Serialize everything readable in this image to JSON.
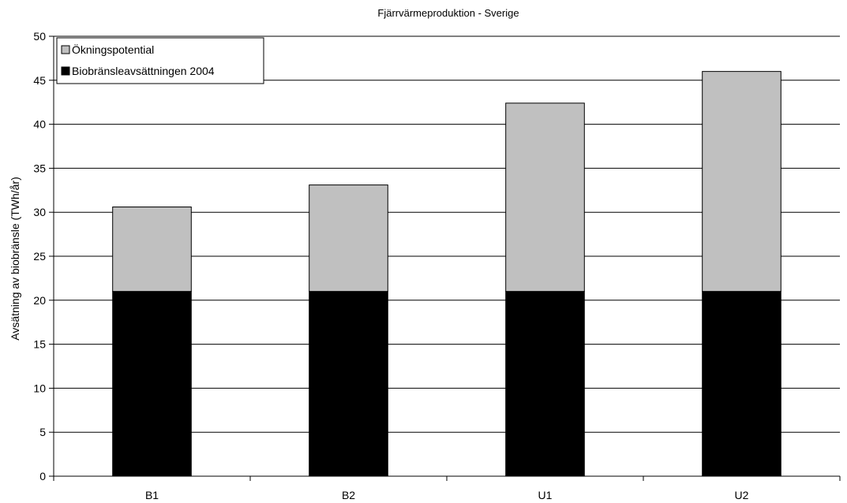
{
  "chart_data": {
    "type": "bar",
    "stacked": true,
    "title": "Fjärrvärmeproduktion - Sverige",
    "xlabel": "",
    "ylabel": "Avsätning av biobränsle (TWh/år)",
    "categories": [
      "B1",
      "B2",
      "U1",
      "U2"
    ],
    "series": [
      {
        "name": "Biobränsleavsättningen 2004",
        "values": [
          21.0,
          21.0,
          21.0,
          21.0
        ],
        "color": "#000000"
      },
      {
        "name": "Ökningspotential",
        "values": [
          9.6,
          12.1,
          21.4,
          25.0
        ],
        "color": "#c0c0c0"
      }
    ],
    "ylim": [
      0,
      50
    ],
    "yticks": [
      0,
      5,
      10,
      15,
      20,
      25,
      30,
      35,
      40,
      45,
      50
    ],
    "grid": true,
    "legend_position": "top-left"
  }
}
